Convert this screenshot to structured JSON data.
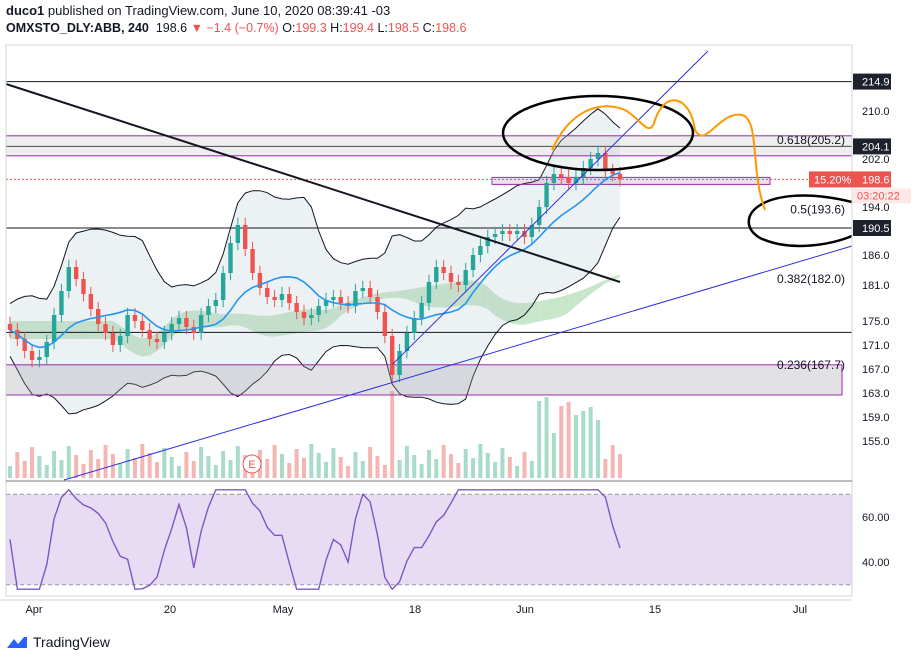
{
  "header": {
    "author": "duco1",
    "published_text": "published on TradingView.com, June 10, 2020 08:39:41 -03",
    "symbol": "OMXSTO_DLY:ABB, 240",
    "last": "198.6",
    "change": "−1.4 (−0.7%)",
    "o_label": "O:",
    "o": "199.3",
    "h_label": "H:",
    "h": "199.4",
    "l_label": "L:",
    "l": "198.5",
    "c_label": "C:",
    "c": "198.6"
  },
  "brand": "TradingView",
  "colors": {
    "up": "#26a69a",
    "down": "#ef5350",
    "ma": "#2196f3",
    "trend": "#3030e0",
    "fib": "#9c27b0",
    "rsi": "#7e57c2",
    "rsi_bg": "#e7dcf3",
    "hand_orange": "#ff9800",
    "price_badge": "#ef5350",
    "level_badge": "#1e222d"
  },
  "chart_data": {
    "type": "candlestick",
    "ylim": [
      152,
      217
    ],
    "y_ticks": [
      155.0,
      159.0,
      163.0,
      167.0,
      171.0,
      175.0,
      181.0,
      186.0,
      190.5,
      194.0,
      198.6,
      202.0,
      204.1,
      210.0,
      214.9
    ],
    "x_ticks": [
      "Apr",
      "20",
      "May",
      "18",
      "Jun",
      "15",
      "Jul"
    ],
    "last_price": 198.6,
    "last_price_pct": "15.20%",
    "countdown": "03:20:22",
    "horizontal_levels": [
      214.9,
      204.1,
      190.5,
      173.1
    ],
    "fib_levels": [
      {
        "label": "0.618(205.2)",
        "value": 205.2
      },
      {
        "label": "0.5(193.6)",
        "value": 193.6
      },
      {
        "label": "0.382(182.0)",
        "value": 182.0
      },
      {
        "label": "0.236(167.7)",
        "value": 167.7
      }
    ],
    "event_marker": "E",
    "closes": [
      173.5,
      172.0,
      170.0,
      168.5,
      169.0,
      171.5,
      176.0,
      180.0,
      184.0,
      182.0,
      179.5,
      177.0,
      174.5,
      173.0,
      171.0,
      172.5,
      176.0,
      175.0,
      173.5,
      172.0,
      171.5,
      173.0,
      174.5,
      175.5,
      174.0,
      173.0,
      176.0,
      177.5,
      178.5,
      183.0,
      188.0,
      191.0,
      187.0,
      183.0,
      180.5,
      179.0,
      178.5,
      179.5,
      178.0,
      176.5,
      175.5,
      176.0,
      177.5,
      178.5,
      179.0,
      178.0,
      177.5,
      180.0,
      180.5,
      179.0,
      176.5,
      172.5,
      166.0,
      170.0,
      173.0,
      175.5,
      178.0,
      181.5,
      184.0,
      183.0,
      181.5,
      181.0,
      183.5,
      186.0,
      187.5,
      189.0,
      189.5,
      190.0,
      189.5,
      190.0,
      189.0,
      191.0,
      194.0,
      198.0,
      199.5,
      199.0,
      198.0,
      199.0,
      200.5,
      202.0,
      203.0,
      200.0,
      199.5,
      198.6
    ],
    "rsi": {
      "ticks": [
        "60.00",
        "40.00"
      ],
      "upper": 70,
      "lower": 30,
      "ylim": [
        25,
        75
      ]
    },
    "volume_axis": {
      "ylim": [
        0,
        100
      ]
    }
  }
}
